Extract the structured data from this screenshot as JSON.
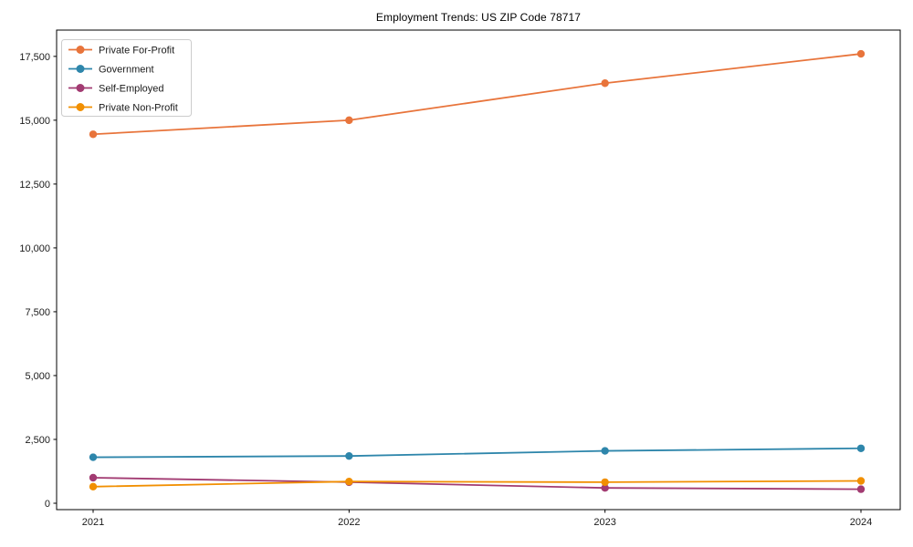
{
  "figure": {
    "background_color": "#ffffff",
    "axis_color": "#000000",
    "text_color": "#1a1a1a",
    "legend_border_color": "#cccccc"
  },
  "chart_data": {
    "type": "line",
    "title": "Employment Trends: US ZIP Code 78717",
    "categories": [
      "2021",
      "2022",
      "2023",
      "2024"
    ],
    "series": [
      {
        "name": "Private For-Profit",
        "color": "#e8743b",
        "values": [
          14450,
          15000,
          16450,
          17600
        ]
      },
      {
        "name": "Government",
        "color": "#2e86ab",
        "values": [
          1800,
          1850,
          2050,
          2150
        ]
      },
      {
        "name": "Self-Employed",
        "color": "#a23b72",
        "values": [
          1000,
          825,
          600,
          550
        ]
      },
      {
        "name": "Private Non-Profit",
        "color": "#f18f01",
        "values": [
          650,
          850,
          825,
          875
        ]
      }
    ],
    "xlabel": "",
    "ylabel": "",
    "ylim": [
      -250,
      18530
    ],
    "yticks": [
      0,
      2500,
      5000,
      7500,
      10000,
      12500,
      15000,
      17500
    ],
    "ytick_labels": [
      "0",
      "2,500",
      "5,000",
      "7,500",
      "10,000",
      "12,500",
      "15,000",
      "17,500"
    ],
    "grid": false,
    "legend_position": "upper-left",
    "marker": "circle"
  }
}
